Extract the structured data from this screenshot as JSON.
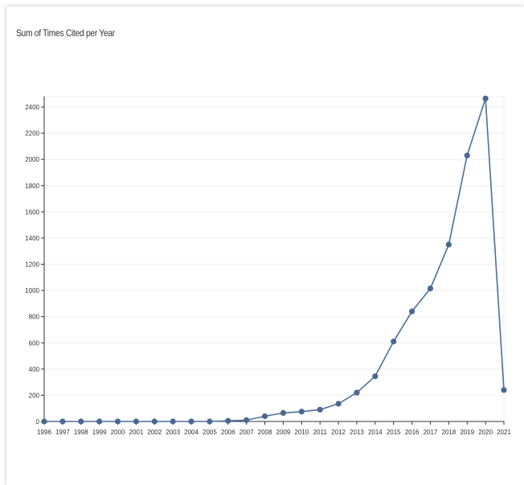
{
  "chart_data": {
    "type": "line",
    "title": "Sum of Times Cited per Year",
    "xlabel": "",
    "ylabel": "",
    "x": [
      1996,
      1997,
      1998,
      1999,
      2000,
      2001,
      2002,
      2003,
      2004,
      2005,
      2006,
      2007,
      2008,
      2009,
      2010,
      2011,
      2012,
      2013,
      2014,
      2015,
      2016,
      2017,
      2018,
      2019,
      2020,
      2021
    ],
    "x_tick_labels": [
      "1996",
      "1997",
      "1998",
      "1999",
      "2000",
      "2001",
      "2002",
      "2003",
      "2004",
      "2005",
      "2006",
      "2007",
      "2008",
      "2009",
      "2010",
      "2011",
      "2012",
      "2013",
      "2014",
      "2015",
      "2016",
      "2017",
      "2018",
      "2019",
      "2020",
      "2021"
    ],
    "series": [
      {
        "values": [
          0,
          0,
          0,
          0,
          0,
          0,
          0,
          0,
          0,
          0,
          5,
          10,
          40,
          65,
          75,
          90,
          135,
          220,
          345,
          610,
          840,
          1015,
          1350,
          2030,
          2465,
          240
        ]
      }
    ],
    "y_ticks": [
      0,
      200,
      400,
      600,
      800,
      1000,
      1200,
      1400,
      1600,
      1800,
      2000,
      2200,
      2400
    ],
    "y_tick_labels": [
      "0",
      "200",
      "400",
      "600",
      "800",
      "1000",
      "1200",
      "1400",
      "1600",
      "1800",
      "2000",
      "2200",
      "2400"
    ],
    "ylim": [
      0,
      2480
    ],
    "grid": "horizontal",
    "legend": "none",
    "colors": {
      "line": "#4e6e97",
      "marker": "#4a6891",
      "grid": "#eeeeee",
      "axis": "#333333"
    }
  }
}
